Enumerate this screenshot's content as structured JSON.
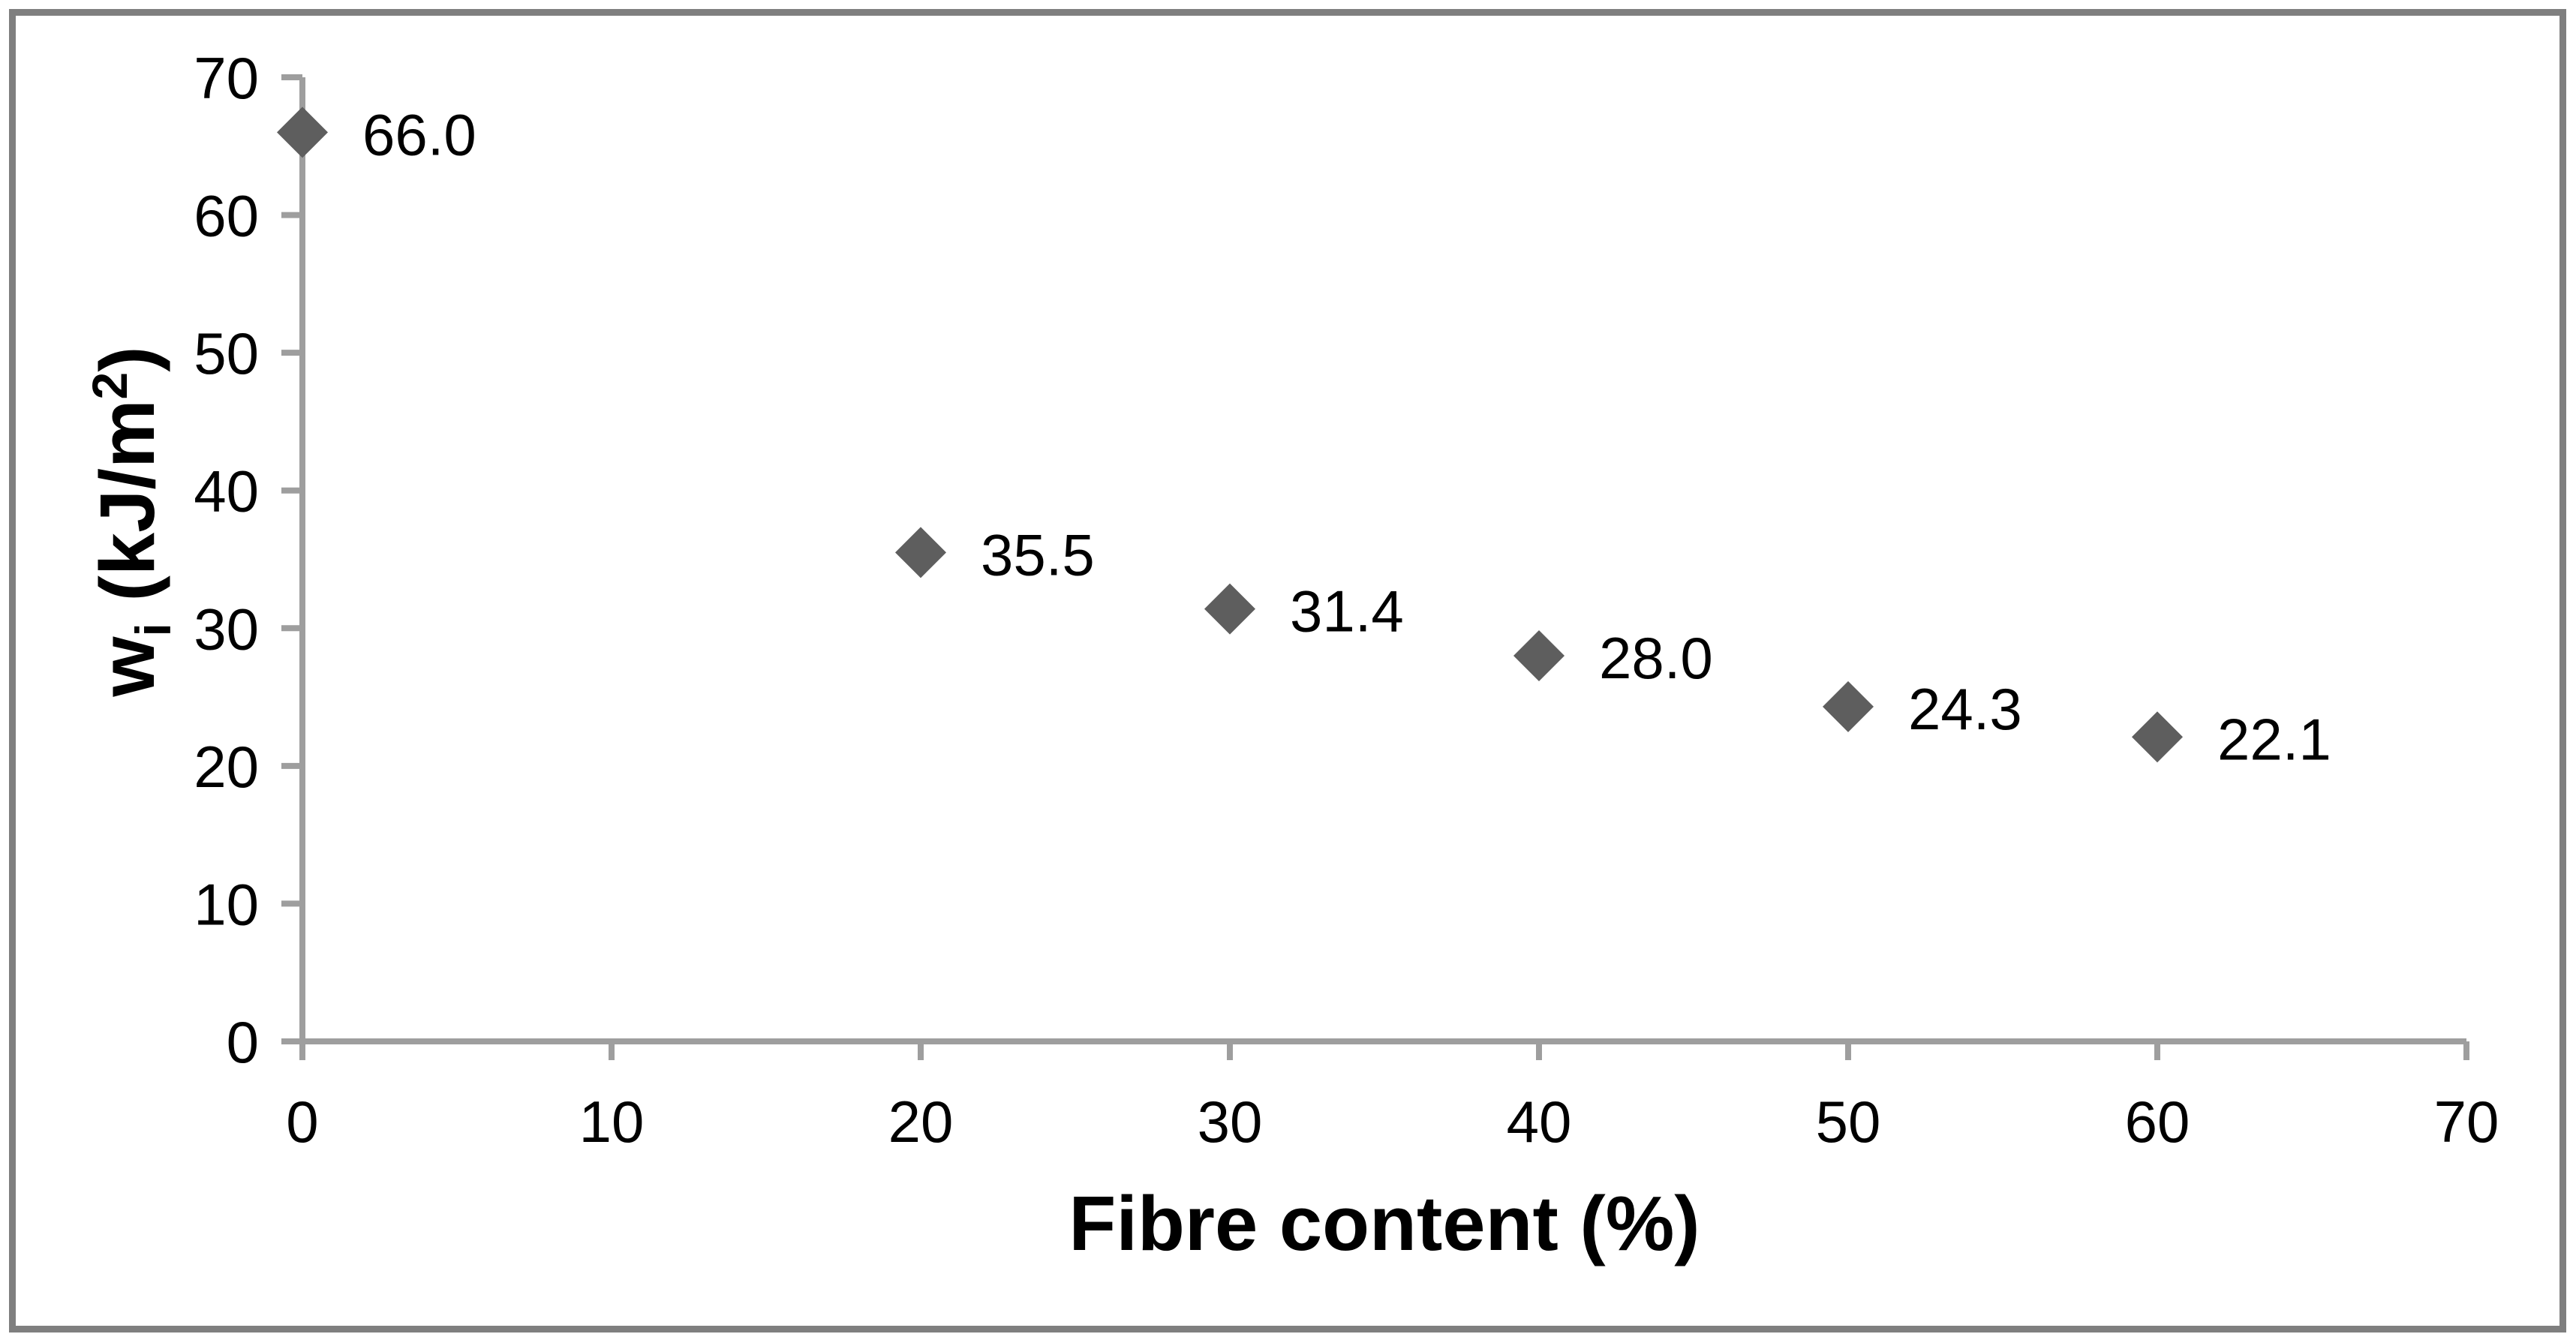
{
  "chart_data": {
    "type": "scatter",
    "title": "",
    "xlabel": "Fibre content (%)",
    "ylabel": "wᵢ (kJ/m²)",
    "ylabel_rich": [
      {
        "text": "w",
        "style": "normal"
      },
      {
        "text": "i",
        "style": "sub"
      },
      {
        "text": " (kJ/m",
        "style": "normal"
      },
      {
        "text": "2",
        "style": "sup"
      },
      {
        "text": ")",
        "style": "normal"
      }
    ],
    "xlim": [
      0,
      70
    ],
    "ylim": [
      0,
      70
    ],
    "xticks": [
      0,
      10,
      20,
      30,
      40,
      50,
      60,
      70
    ],
    "yticks": [
      0,
      10,
      20,
      30,
      40,
      50,
      60,
      70
    ],
    "grid": false,
    "legend": "none",
    "marker": "diamond",
    "data_label_position": "right",
    "series": [
      {
        "points": [
          {
            "x": 0,
            "y": 66.0,
            "label": "66.0"
          },
          {
            "x": 20,
            "y": 35.5,
            "label": "35.5"
          },
          {
            "x": 30,
            "y": 31.4,
            "label": "31.4"
          },
          {
            "x": 40,
            "y": 28.0,
            "label": "28.0"
          },
          {
            "x": 50,
            "y": 24.3,
            "label": "24.3"
          },
          {
            "x": 60,
            "y": 22.1,
            "label": "22.1"
          }
        ]
      }
    ],
    "colors": {
      "marker": "#5e5e5e",
      "axis": "#9e9e9e",
      "text": "#000000",
      "frame_border": "#7f7f7f",
      "background": "#ffffff"
    }
  }
}
